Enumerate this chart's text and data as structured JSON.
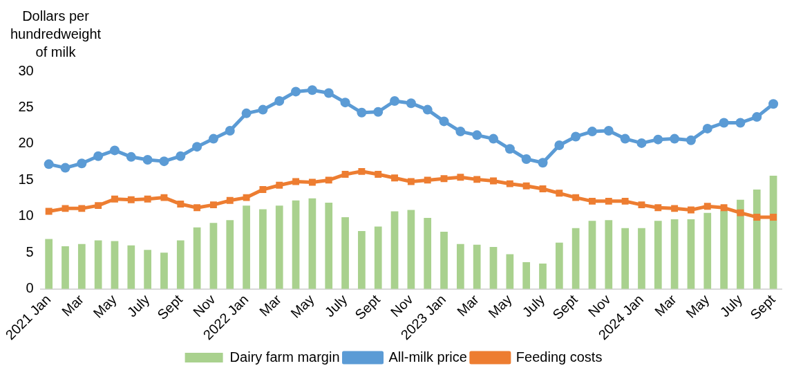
{
  "chart_data": {
    "type": "bar",
    "ylabel": "Dollars per hundredweight of milk",
    "categories": [
      "2021 Jan",
      null,
      "Mar",
      null,
      "May",
      null,
      "July",
      null,
      "Sept",
      null,
      "Nov",
      null,
      "2022 Jan",
      null,
      "Mar",
      null,
      "May",
      null,
      "July",
      null,
      "Sept",
      null,
      "Nov",
      null,
      "2023 Jan",
      null,
      "Mar",
      null,
      "May",
      null,
      "July",
      null,
      "Sept",
      null,
      "Nov",
      null,
      "2024 Jan",
      null,
      "Mar",
      null,
      "May",
      null,
      "July",
      null,
      "Sept"
    ],
    "ylim": [
      0,
      30
    ],
    "yticks": [
      0,
      5,
      10,
      15,
      20,
      25,
      30
    ],
    "legend": "bottom",
    "series": [
      {
        "name": "Dairy farm margin",
        "color": "#a9d18e",
        "values": [
          6.9,
          5.9,
          6.2,
          6.7,
          6.6,
          6.0,
          5.4,
          5.0,
          6.7,
          8.5,
          9.1,
          9.5,
          11.5,
          11.0,
          11.5,
          12.2,
          12.5,
          11.9,
          9.9,
          8.0,
          8.6,
          10.7,
          10.9,
          9.8,
          7.9,
          6.2,
          6.1,
          5.8,
          4.8,
          3.7,
          3.5,
          6.4,
          8.4,
          9.4,
          9.5,
          8.4,
          8.4,
          9.4,
          9.6,
          9.6,
          10.5,
          10.8,
          12.3,
          13.7,
          15.6
        ]
      },
      {
        "name": "All-milk price",
        "type": "line",
        "marker": "circle",
        "color": "#5b9bd5",
        "values": [
          17.2,
          16.7,
          17.3,
          18.3,
          19.1,
          18.2,
          17.8,
          17.6,
          18.3,
          19.6,
          20.7,
          21.8,
          24.2,
          24.7,
          25.9,
          27.2,
          27.4,
          27.0,
          25.7,
          24.3,
          24.4,
          25.9,
          25.6,
          24.7,
          23.1,
          21.7,
          21.2,
          20.7,
          19.3,
          17.9,
          17.4,
          19.8,
          21.0,
          21.7,
          21.8,
          20.7,
          20.1,
          20.6,
          20.7,
          20.5,
          22.1,
          22.9,
          22.9,
          23.7,
          25.5
        ]
      },
      {
        "name": "Feeding costs",
        "type": "line",
        "marker": "square",
        "color": "#ed7d31",
        "values": [
          10.7,
          11.1,
          11.1,
          11.5,
          12.4,
          12.3,
          12.4,
          12.6,
          11.7,
          11.2,
          11.6,
          12.2,
          12.6,
          13.7,
          14.3,
          14.8,
          14.7,
          15.0,
          15.8,
          16.2,
          15.8,
          15.3,
          14.8,
          15.0,
          15.2,
          15.4,
          15.1,
          14.9,
          14.5,
          14.2,
          13.8,
          13.2,
          12.6,
          12.1,
          12.1,
          12.1,
          11.6,
          11.2,
          11.1,
          10.9,
          11.4,
          11.2,
          10.5,
          9.9,
          9.9
        ]
      }
    ]
  }
}
